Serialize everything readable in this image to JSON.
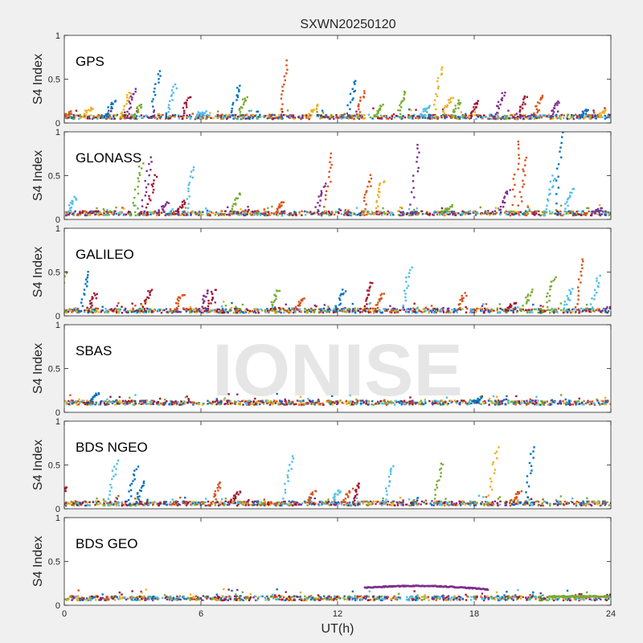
{
  "chart_data": {
    "type": "scatter",
    "title": "SXWN20250120",
    "xlabel": "UT(h)",
    "ylabel": "S4 Index",
    "watermark": "IONISE",
    "xlim": [
      0,
      24
    ],
    "ylim": [
      0,
      1
    ],
    "xticks": [
      "0",
      "6",
      "12",
      "18",
      "24"
    ],
    "yticks": [
      "0",
      "0.5",
      "1"
    ],
    "grid": false,
    "series_colors": [
      "#0072bd",
      "#d95319",
      "#edb120",
      "#7e2f8e",
      "#77ac30",
      "#4dbeee",
      "#a2142f"
    ],
    "panels": [
      {
        "name": "GPS",
        "baseline": 0.07,
        "spikes": [
          {
            "x": 0.3,
            "y": 0.12,
            "c": 1
          },
          {
            "x": 1.2,
            "y": 0.18,
            "c": 2
          },
          {
            "x": 2.2,
            "y": 0.25,
            "c": 0
          },
          {
            "x": 2.9,
            "y": 0.35,
            "c": 2
          },
          {
            "x": 3.1,
            "y": 0.38,
            "c": 3
          },
          {
            "x": 3.4,
            "y": 0.22,
            "c": 4
          },
          {
            "x": 4.2,
            "y": 0.6,
            "c": 0
          },
          {
            "x": 4.9,
            "y": 0.45,
            "c": 5
          },
          {
            "x": 5.5,
            "y": 0.3,
            "c": 6
          },
          {
            "x": 6.2,
            "y": 0.12,
            "c": 5
          },
          {
            "x": 7.7,
            "y": 0.42,
            "c": 0
          },
          {
            "x": 8.0,
            "y": 0.3,
            "c": 4
          },
          {
            "x": 9.8,
            "y": 0.7,
            "c": 1
          },
          {
            "x": 11.1,
            "y": 0.2,
            "c": 2
          },
          {
            "x": 12.8,
            "y": 0.48,
            "c": 0
          },
          {
            "x": 13.2,
            "y": 0.35,
            "c": 1
          },
          {
            "x": 14.0,
            "y": 0.2,
            "c": 4
          },
          {
            "x": 15.0,
            "y": 0.35,
            "c": 4
          },
          {
            "x": 16.0,
            "y": 0.2,
            "c": 5
          },
          {
            "x": 16.6,
            "y": 0.65,
            "c": 2
          },
          {
            "x": 17.0,
            "y": 0.3,
            "c": 2
          },
          {
            "x": 17.4,
            "y": 0.25,
            "c": 4
          },
          {
            "x": 18.2,
            "y": 0.25,
            "c": 6
          },
          {
            "x": 19.3,
            "y": 0.35,
            "c": 3
          },
          {
            "x": 20.3,
            "y": 0.3,
            "c": 6
          },
          {
            "x": 21.0,
            "y": 0.32,
            "c": 1
          },
          {
            "x": 21.7,
            "y": 0.25,
            "c": 3
          },
          {
            "x": 23.0,
            "y": 0.15,
            "c": 0
          },
          {
            "x": 23.8,
            "y": 0.15,
            "c": 2
          }
        ]
      },
      {
        "name": "GLONASS",
        "baseline": 0.07,
        "spikes": [
          {
            "x": 0.5,
            "y": 0.25,
            "c": 5
          },
          {
            "x": 3.4,
            "y": 0.65,
            "c": 4
          },
          {
            "x": 3.8,
            "y": 0.7,
            "c": 3
          },
          {
            "x": 4.0,
            "y": 0.5,
            "c": 6
          },
          {
            "x": 4.5,
            "y": 0.2,
            "c": 3
          },
          {
            "x": 5.3,
            "y": 0.2,
            "c": 6
          },
          {
            "x": 5.7,
            "y": 0.6,
            "c": 5
          },
          {
            "x": 7.7,
            "y": 0.3,
            "c": 4
          },
          {
            "x": 9.6,
            "y": 0.2,
            "c": 1
          },
          {
            "x": 11.4,
            "y": 0.4,
            "c": 3
          },
          {
            "x": 11.8,
            "y": 0.75,
            "c": 1
          },
          {
            "x": 13.5,
            "y": 0.5,
            "c": 1
          },
          {
            "x": 14.0,
            "y": 0.45,
            "c": 2
          },
          {
            "x": 15.6,
            "y": 0.85,
            "c": 3
          },
          {
            "x": 17.0,
            "y": 0.15,
            "c": 4
          },
          {
            "x": 19.5,
            "y": 0.35,
            "c": 3
          },
          {
            "x": 20.0,
            "y": 0.9,
            "c": 1
          },
          {
            "x": 20.3,
            "y": 0.7,
            "c": 1
          },
          {
            "x": 21.5,
            "y": 0.5,
            "c": 5
          },
          {
            "x": 21.9,
            "y": 1.0,
            "c": 0
          },
          {
            "x": 22.3,
            "y": 0.35,
            "c": 5
          },
          {
            "x": 23.6,
            "y": 0.12,
            "c": 3
          }
        ]
      },
      {
        "name": "GALILEO",
        "baseline": 0.06,
        "spikes": [
          {
            "x": 0.1,
            "y": 0.5,
            "c": 4
          },
          {
            "x": 1.1,
            "y": 0.5,
            "c": 0
          },
          {
            "x": 1.4,
            "y": 0.25,
            "c": 6
          },
          {
            "x": 3.8,
            "y": 0.3,
            "c": 6
          },
          {
            "x": 5.2,
            "y": 0.25,
            "c": 1
          },
          {
            "x": 6.3,
            "y": 0.3,
            "c": 3
          },
          {
            "x": 6.6,
            "y": 0.3,
            "c": 6
          },
          {
            "x": 9.4,
            "y": 0.3,
            "c": 4
          },
          {
            "x": 10.5,
            "y": 0.2,
            "c": 1
          },
          {
            "x": 12.3,
            "y": 0.3,
            "c": 0
          },
          {
            "x": 13.5,
            "y": 0.38,
            "c": 6
          },
          {
            "x": 14.0,
            "y": 0.25,
            "c": 1
          },
          {
            "x": 15.2,
            "y": 0.55,
            "c": 5
          },
          {
            "x": 17.6,
            "y": 0.25,
            "c": 1
          },
          {
            "x": 19.8,
            "y": 0.15,
            "c": 6
          },
          {
            "x": 21.5,
            "y": 0.45,
            "c": 4
          },
          {
            "x": 22.3,
            "y": 0.3,
            "c": 5
          },
          {
            "x": 22.8,
            "y": 0.65,
            "c": 1
          },
          {
            "x": 23.5,
            "y": 0.45,
            "c": 5
          },
          {
            "x": 20.5,
            "y": 0.3,
            "c": 4
          }
        ]
      },
      {
        "name": "SBAS",
        "baseline": 0.11,
        "spikes": [
          {
            "x": 1.5,
            "y": 0.22,
            "c": 0
          },
          {
            "x": 18.3,
            "y": 0.16,
            "c": 0
          }
        ]
      },
      {
        "name": "BDS NGEO",
        "baseline": 0.06,
        "spikes": [
          {
            "x": 0.1,
            "y": 0.25,
            "c": 6
          },
          {
            "x": 2.3,
            "y": 0.55,
            "c": 5
          },
          {
            "x": 3.2,
            "y": 0.48,
            "c": 0
          },
          {
            "x": 3.5,
            "y": 0.3,
            "c": 0
          },
          {
            "x": 6.9,
            "y": 0.3,
            "c": 1
          },
          {
            "x": 7.7,
            "y": 0.2,
            "c": 6
          },
          {
            "x": 10.0,
            "y": 0.6,
            "c": 5
          },
          {
            "x": 11.0,
            "y": 0.2,
            "c": 1
          },
          {
            "x": 12.1,
            "y": 0.22,
            "c": 5
          },
          {
            "x": 12.6,
            "y": 0.22,
            "c": 1
          },
          {
            "x": 13.0,
            "y": 0.3,
            "c": 6
          },
          {
            "x": 14.4,
            "y": 0.5,
            "c": 5
          },
          {
            "x": 16.6,
            "y": 0.52,
            "c": 4
          },
          {
            "x": 19.0,
            "y": 0.7,
            "c": 2
          },
          {
            "x": 20.6,
            "y": 0.7,
            "c": 0
          },
          {
            "x": 20.0,
            "y": 0.2,
            "c": 1
          }
        ]
      },
      {
        "name": "BDS GEO",
        "baseline": 0.08,
        "spikes": [],
        "arc": {
          "x_start": 13.2,
          "x_end": 18.6,
          "y_start": 0.2,
          "y_peak": 0.23,
          "y_end": 0.18,
          "c": 3
        },
        "tail": {
          "x_start": 21.3,
          "x_end": 24,
          "y": 0.1,
          "c": 4
        }
      }
    ]
  }
}
